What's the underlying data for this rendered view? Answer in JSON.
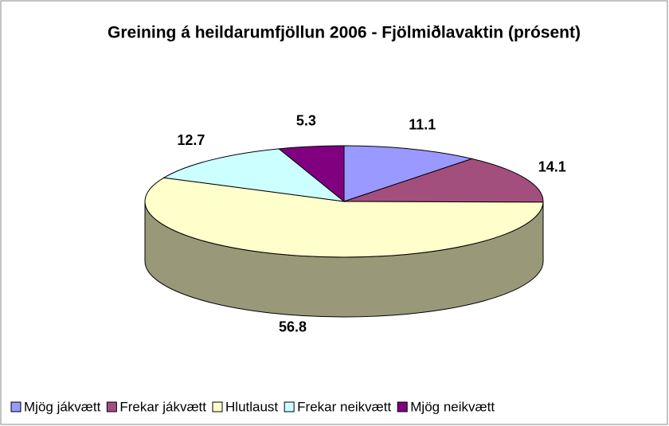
{
  "chart_data": {
    "type": "pie3d",
    "title": "Greining á heildarumfjöllun 2006 - Fjölmiðlavaktin (prósent)",
    "categories": [
      "Mjög jákvætt",
      "Frekar jákvætt",
      "Hlutlaust",
      "Frekar neikvætt",
      "Mjög neikvætt"
    ],
    "values": [
      11.1,
      14.1,
      56.8,
      12.7,
      5.3
    ],
    "colors": [
      "#9999ff",
      "#a34f7e",
      "#ffffcc",
      "#ccffff",
      "#800080"
    ],
    "legend": "bottom"
  }
}
